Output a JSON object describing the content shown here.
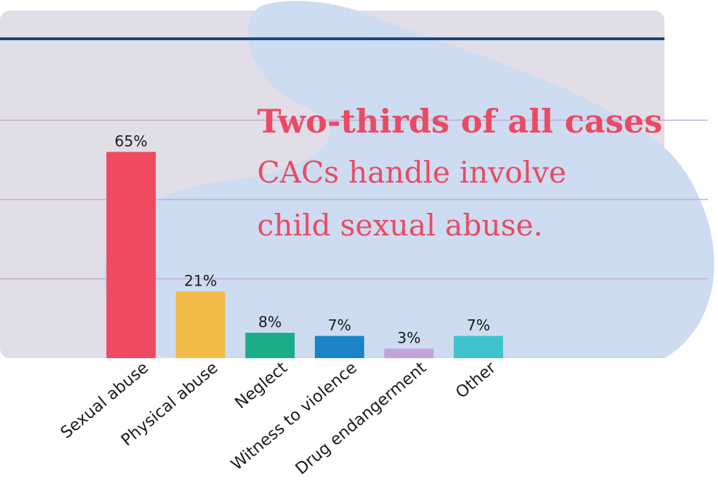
{
  "headline": {
    "bold": "Two-thirds of all cases",
    "line2": "CACs handle involve",
    "line3": "child sexual abuse."
  },
  "colors": {
    "panel": "#e1dee7",
    "blob": "#cddcf0",
    "top_rule": "#14457f",
    "grid": "#c6a9d6",
    "headline": "#ea4a63"
  },
  "chart_data": {
    "type": "bar",
    "categories": [
      "Sexual abuse",
      "Physical abuse",
      "Neglect",
      "Witness to violence",
      "Drug endangerment",
      "Other"
    ],
    "values": [
      65,
      21,
      8,
      7,
      3,
      7
    ],
    "value_labels": [
      "65%",
      "21%",
      "8%",
      "7%",
      "3%",
      "7%"
    ],
    "colors": [
      "#ef4a62",
      "#f2bb48",
      "#19ae87",
      "#1b84c9",
      "#c2a5d6",
      "#3fc3cd"
    ],
    "ylim": [
      0,
      80
    ],
    "grid": true,
    "title": "",
    "xlabel": "",
    "ylabel": ""
  }
}
